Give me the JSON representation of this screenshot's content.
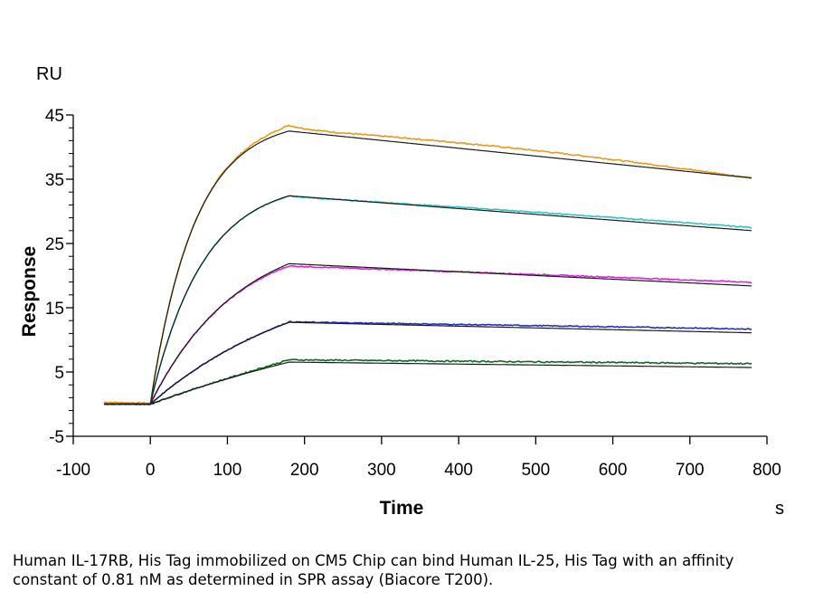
{
  "chart_data": {
    "type": "line",
    "xlabel": "Time",
    "xunit": "s",
    "ylabel": "Response",
    "yunit": "RU",
    "xlim": [
      -100,
      800
    ],
    "ylim": [
      -5,
      45
    ],
    "xticks": [
      -100,
      0,
      100,
      200,
      300,
      400,
      500,
      600,
      700,
      800
    ],
    "yticks": [
      -5,
      5,
      15,
      25,
      35,
      45
    ],
    "grid": false,
    "legend": "none",
    "series": [
      {
        "color": "#E69A1E",
        "fit_color": "#1a1a1a",
        "baseline": 0.3,
        "rmax": 44.4,
        "kobs": 0.0175,
        "peak": 43.4,
        "end": 35.8,
        "curv": 0.16,
        "noise": 0.2
      },
      {
        "color": "#2EC4C4",
        "fit_color": "#1a1a1a",
        "baseline": 0.0,
        "rmax": 34.9,
        "kobs": 0.0147,
        "peak": 32.4,
        "end": 27.6,
        "curv": 0.05,
        "noise": 0.15
      },
      {
        "color": "#E020E0",
        "fit_color": "#1a1a1a",
        "baseline": 0.0,
        "rmax": 27.5,
        "kobs": 0.0088,
        "peak": 21.5,
        "end": 19.0,
        "curv": 0.03,
        "noise": 0.15
      },
      {
        "color": "#2030C8",
        "fit_color": "#1a1a1a",
        "baseline": 0.0,
        "rmax": 22.0,
        "kobs": 0.0048,
        "peak": 12.8,
        "end": 11.7,
        "curv": 0.02,
        "noise": 0.15
      },
      {
        "color": "#0E6A22",
        "fit_color": "#1a1a1a",
        "baseline": 0.0,
        "rmax": 20.0,
        "kobs": 0.0022,
        "peak": 6.9,
        "end": 6.3,
        "curv": 0.01,
        "noise": 0.2
      }
    ],
    "phases": {
      "baseline_start": -60,
      "association_start": 0,
      "dissociation_start": 180,
      "end": 780
    }
  },
  "caption": "Human IL-17RB, His Tag immobilized on CM5 Chip can bind Human IL-25, His Tag with an affinity constant of 0.81 nM as determined in SPR assay (Biacore T200)."
}
